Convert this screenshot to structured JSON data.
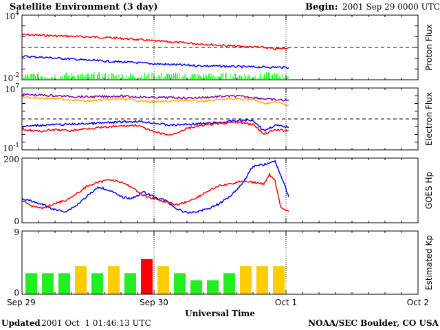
{
  "header": {
    "title": "Satellite Environment (3 day)",
    "begin_label": "Begin:",
    "begin_value": "2001 Sep 29 0000 UTC"
  },
  "footer": {
    "updated_label": "Updated",
    "updated_value": "2001 Oct  1 01:46:13 UTC",
    "credit": "NOAA/SEC Boulder, CO USA",
    "xlabel": "Universal Time"
  },
  "colors": {
    "red": "#ff0000",
    "blue": "#0000ff",
    "green": "#00ff00",
    "orange": "#ffb000",
    "purple": "#8800aa",
    "kp_green": "#22ee22",
    "kp_yellow": "#ffcc00",
    "kp_red": "#ff0000"
  },
  "chart_data": [
    {
      "type": "line",
      "ylabel": "Proton Flux",
      "yscale": "log",
      "ylim": [
        0.01,
        10000
      ],
      "ytick_labels": [
        {
          "base": "10",
          "exp": "4",
          "value": 10000
        },
        {
          "base": "10",
          "exp": "-2",
          "value": 0.01
        }
      ],
      "threshold": 10,
      "xlim": [
        0,
        72
      ],
      "series": [
        {
          "color": "red",
          "x": [
            0,
            4,
            8,
            12,
            16,
            20,
            24,
            28,
            32,
            36,
            40,
            44,
            46,
            48.5
          ],
          "y": [
            150,
            130,
            110,
            95,
            80,
            60,
            40,
            30,
            22,
            16,
            12,
            10,
            7,
            9
          ]
        },
        {
          "color": "blue",
          "x": [
            0,
            4,
            8,
            12,
            16,
            20,
            24,
            28,
            32,
            36,
            40,
            44,
            48.5
          ],
          "y": [
            1.5,
            1.2,
            0.9,
            0.65,
            0.5,
            0.4,
            0.3,
            0.25,
            0.2,
            0.18,
            0.16,
            0.15,
            0.14
          ]
        },
        {
          "color": "green",
          "style": "noise",
          "x": [
            0,
            48.5
          ],
          "y_low": 0.01,
          "y_high": 0.05
        }
      ]
    },
    {
      "type": "line",
      "ylabel": "Electron Flux",
      "yscale": "log",
      "ylim": [
        0.1,
        10000000
      ],
      "ytick_labels": [
        {
          "base": "10",
          "exp": "7",
          "value": 10000000
        },
        {
          "base": "10",
          "exp": "-1",
          "value": 0.1
        }
      ],
      "threshold": 1000,
      "xlim": [
        0,
        72
      ],
      "series": [
        {
          "color": "purple",
          "x": [
            0,
            3,
            6,
            9,
            12,
            15,
            18,
            21,
            24,
            27,
            30,
            33,
            36,
            39,
            42,
            44,
            46,
            48.5
          ],
          "y": [
            1500000,
            1200000,
            1000000,
            800000,
            700000,
            800000,
            900000,
            700000,
            600000,
            600000,
            500000,
            600000,
            800000,
            900000,
            600000,
            400000,
            300000,
            250000
          ]
        },
        {
          "color": "orange",
          "x": [
            0,
            3,
            6,
            9,
            12,
            15,
            18,
            21,
            24,
            27,
            30,
            33,
            36,
            39,
            42,
            44,
            46,
            48.5
          ],
          "y": [
            700000,
            500000,
            400000,
            300000,
            200000,
            300000,
            400000,
            250000,
            150000,
            200000,
            250000,
            200000,
            300000,
            400000,
            300000,
            100000,
            150000,
            60000
          ]
        },
        {
          "color": "blue",
          "x": [
            0,
            3,
            6,
            9,
            12,
            15,
            18,
            21,
            24,
            27,
            30,
            33,
            36,
            39,
            42,
            44,
            46,
            48.5
          ],
          "y": [
            100,
            150,
            180,
            200,
            250,
            300,
            400,
            500,
            300,
            150,
            200,
            250,
            350,
            600,
            700,
            30,
            150,
            80
          ]
        },
        {
          "color": "red",
          "x": [
            0,
            3,
            6,
            9,
            12,
            15,
            18,
            21,
            24,
            27,
            30,
            33,
            36,
            39,
            42,
            44,
            46,
            48.5
          ],
          "y": [
            50,
            25,
            40,
            30,
            60,
            80,
            120,
            150,
            20,
            8,
            60,
            150,
            250,
            400,
            200,
            10,
            40,
            30
          ]
        }
      ]
    },
    {
      "type": "line",
      "ylabel": "GOES Hp",
      "yscale": "linear",
      "ylim": [
        0,
        200
      ],
      "ytick_labels": [
        {
          "base": "200",
          "exp": "",
          "value": 200
        },
        {
          "base": "0",
          "exp": "",
          "value": 0
        }
      ],
      "xlim": [
        0,
        72
      ],
      "series": [
        {
          "color": "blue",
          "x": [
            0,
            2,
            4,
            6,
            8,
            10,
            12,
            14,
            16,
            18,
            20,
            22,
            24,
            26,
            28,
            30,
            32,
            34,
            36,
            38,
            40,
            42,
            44,
            46,
            47,
            48.5
          ],
          "y": [
            75,
            65,
            55,
            40,
            35,
            55,
            85,
            110,
            100,
            80,
            75,
            95,
            80,
            70,
            45,
            30,
            35,
            45,
            60,
            85,
            120,
            175,
            180,
            190,
            150,
            80
          ]
        },
        {
          "color": "red",
          "x": [
            0,
            2,
            4,
            6,
            8,
            10,
            12,
            14,
            16,
            18,
            20,
            22,
            24,
            26,
            28,
            30,
            32,
            34,
            36,
            38,
            40,
            42,
            44,
            45,
            46,
            47,
            48.5
          ],
          "y": [
            70,
            50,
            45,
            60,
            70,
            90,
            115,
            125,
            135,
            125,
            110,
            85,
            75,
            65,
            55,
            65,
            80,
            100,
            115,
            120,
            130,
            125,
            120,
            150,
            130,
            50,
            35
          ]
        }
      ]
    },
    {
      "type": "bar",
      "ylabel": "Estimated Kp",
      "yscale": "linear",
      "ylim": [
        0,
        9
      ],
      "ytick_labels": [
        {
          "base": "9",
          "exp": "",
          "value": 9
        },
        {
          "base": "0",
          "exp": "",
          "value": 0
        }
      ],
      "xlim": [
        0,
        72
      ],
      "bar_width_hours": 3,
      "bars": [
        {
          "start": 0,
          "value": 3,
          "color": "kp_green"
        },
        {
          "start": 3,
          "value": 3,
          "color": "kp_green"
        },
        {
          "start": 6,
          "value": 3,
          "color": "kp_green"
        },
        {
          "start": 9,
          "value": 4,
          "color": "kp_yellow"
        },
        {
          "start": 12,
          "value": 3,
          "color": "kp_green"
        },
        {
          "start": 15,
          "value": 4,
          "color": "kp_yellow"
        },
        {
          "start": 18,
          "value": 3,
          "color": "kp_green"
        },
        {
          "start": 21,
          "value": 5,
          "color": "kp_red"
        },
        {
          "start": 24,
          "value": 4,
          "color": "kp_yellow"
        },
        {
          "start": 27,
          "value": 3,
          "color": "kp_green"
        },
        {
          "start": 30,
          "value": 2,
          "color": "kp_green"
        },
        {
          "start": 33,
          "value": 2,
          "color": "kp_green"
        },
        {
          "start": 36,
          "value": 3,
          "color": "kp_green"
        },
        {
          "start": 39,
          "value": 4,
          "color": "kp_yellow"
        },
        {
          "start": 42,
          "value": 4,
          "color": "kp_yellow"
        },
        {
          "start": 45,
          "value": 4,
          "color": "kp_yellow"
        }
      ]
    }
  ],
  "x_axis": {
    "range_hours": [
      0,
      72
    ],
    "day_markers_hours": [
      24,
      48
    ],
    "ticks": [
      {
        "label": "Sep 29",
        "hour": 0
      },
      {
        "label": "Sep 30",
        "hour": 24
      },
      {
        "label": "Oct 1",
        "hour": 48
      },
      {
        "label": "Oct 2",
        "hour": 72
      }
    ]
  }
}
